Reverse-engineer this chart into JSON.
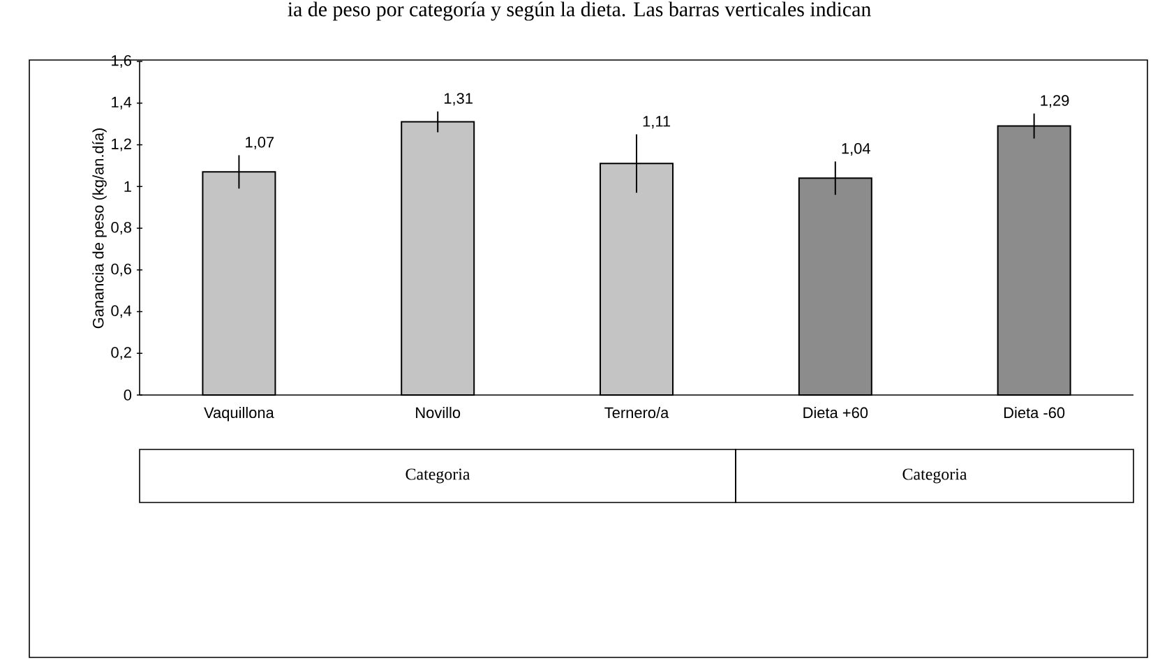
{
  "chart_data": {
    "type": "bar",
    "title": "ia de peso por categoría y según la dieta. Las barras verticales indican",
    "ylabel": "Ganancia de peso (kg/an.día)",
    "categories": [
      "Vaquillona",
      "Novillo",
      "Ternero/a",
      "Dieta +60",
      "Dieta -60"
    ],
    "values": [
      1.07,
      1.31,
      1.11,
      1.04,
      1.29
    ],
    "errors": [
      0.08,
      0.05,
      0.14,
      0.08,
      0.06
    ],
    "value_labels": [
      "1,07",
      "1,31",
      "1,11",
      "1,04",
      "1,29"
    ],
    "colors": [
      "#c4c4c4",
      "#c4c4c4",
      "#c4c4c4",
      "#8c8c8c",
      "#8c8c8c"
    ],
    "ylim": [
      0,
      1.6
    ],
    "yticks": [
      0,
      {
        "value": 0.2,
        "label": "0,2"
      },
      {
        "value": 0.4,
        "label": "0,4"
      },
      {
        "value": 0.6,
        "label": "0,6"
      },
      {
        "value": 0.8,
        "label": "0,8"
      },
      1,
      {
        "value": 1.2,
        "label": "1,2"
      },
      {
        "value": 1.4,
        "label": "1,4"
      },
      {
        "value": 1.6,
        "label": "1,6"
      }
    ],
    "annotations": [
      "Categoria",
      "Categoria"
    ]
  }
}
